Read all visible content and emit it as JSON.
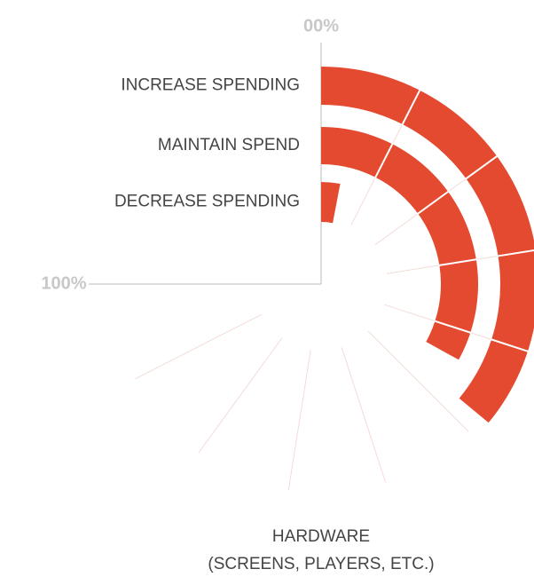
{
  "chart_data": {
    "type": "radial_bar",
    "title": [
      "HARDWARE",
      "(SCREENS, PLAYERS, ETC.)"
    ],
    "series": [
      {
        "name": "INCREASE SPENDING",
        "color": "#e44a2f",
        "values": [
          48
        ]
      },
      {
        "name": "MAINTAIN SPEND",
        "color": "#e44a2f",
        "values": [
          44
        ]
      },
      {
        "name": "DECREASE SPENDING",
        "color": "#e44a2f",
        "values": [
          4
        ]
      }
    ],
    "xlim": [
      0,
      100
    ],
    "xticks": [
      {
        "value": 0,
        "label": "00%"
      },
      {
        "value": 100,
        "label": "100%"
      }
    ]
  }
}
